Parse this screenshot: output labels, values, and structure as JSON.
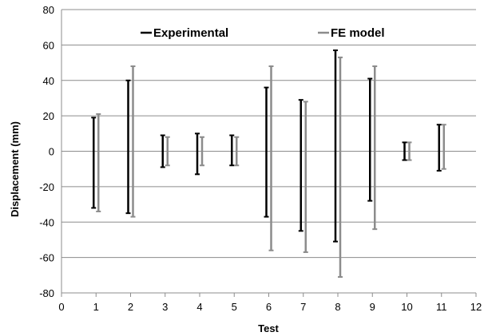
{
  "chart_data": {
    "type": "range",
    "title": "",
    "xlabel": "Test",
    "ylabel": "Displacement (mm)",
    "xlim": [
      0,
      12
    ],
    "ylim": [
      -80,
      80
    ],
    "x_ticks": [
      0,
      1,
      2,
      3,
      4,
      5,
      6,
      7,
      8,
      9,
      10,
      11,
      12
    ],
    "y_ticks": [
      -80,
      -60,
      -40,
      -20,
      0,
      20,
      40,
      60,
      80
    ],
    "grid": "horizontal",
    "legend_position": "top",
    "series": [
      {
        "name": "Experimental",
        "color": "#000000",
        "x": [
          1,
          2,
          3,
          4,
          5,
          6,
          7,
          8,
          9,
          10,
          11
        ],
        "low": [
          -32,
          -35,
          -9,
          -13,
          -8,
          -37,
          -45,
          -51,
          -28,
          -5,
          -11
        ],
        "high": [
          19,
          40,
          9,
          10,
          9,
          36,
          29,
          57,
          41,
          5,
          15
        ]
      },
      {
        "name": "FE model",
        "color": "#8c8c8c",
        "x": [
          1,
          2,
          3,
          4,
          5,
          6,
          7,
          8,
          9,
          10,
          11
        ],
        "low": [
          -34,
          -37,
          -8,
          -8,
          -8,
          -56,
          -57,
          -71,
          -44,
          -5,
          -10
        ],
        "high": [
          21,
          48,
          8,
          8,
          8,
          48,
          28,
          53,
          48,
          5,
          15
        ]
      }
    ]
  }
}
